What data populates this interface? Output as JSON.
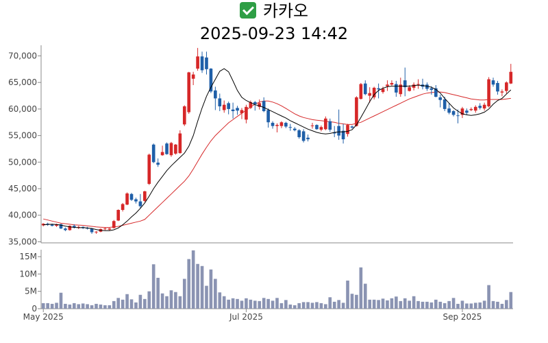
{
  "header": {
    "icon": "check-mark-icon",
    "name": "카카오",
    "datetime": "2025-09-23 14:42"
  },
  "colors": {
    "up": "#d62728",
    "down": "#1f5fa8",
    "ma_short": "#000000",
    "ma_long": "#d62728",
    "volume": "#8a93b2",
    "axis": "#888888"
  },
  "chart_data": {
    "type": "candlestick",
    "price_axis": {
      "ylim": [
        34800,
        72000
      ],
      "ticks": [
        "35,000",
        "40,000",
        "45,000",
        "50,000",
        "55,000",
        "60,000",
        "65,000",
        "70,000"
      ],
      "tick_values": [
        35000,
        40000,
        45000,
        50000,
        55000,
        60000,
        65000,
        70000
      ]
    },
    "volume_axis": {
      "ylim": [
        0,
        17000000
      ],
      "ticks": [
        "0",
        "5M",
        "10M",
        "15M"
      ],
      "tick_values": [
        0,
        5000000,
        10000000,
        15000000
      ]
    },
    "x_ticks": [
      {
        "label": "May 2025",
        "index": 0
      },
      {
        "label": "Jul 2025",
        "index": 46
      },
      {
        "label": "Sep 2025",
        "index": 95
      }
    ],
    "candles": [
      [
        38100,
        38500,
        37900,
        38400
      ],
      [
        38400,
        38600,
        38000,
        38200
      ],
      [
        38200,
        38400,
        37900,
        38000
      ],
      [
        38000,
        38400,
        37800,
        38300
      ],
      [
        38300,
        38400,
        37400,
        37500
      ],
      [
        37500,
        37700,
        37000,
        37200
      ],
      [
        37200,
        38100,
        37100,
        38000
      ],
      [
        38000,
        38300,
        37500,
        37700
      ],
      [
        37700,
        38000,
        37400,
        37800
      ],
      [
        37800,
        37900,
        37400,
        37600
      ],
      [
        37600,
        37800,
        37300,
        37500
      ],
      [
        37500,
        37600,
        36500,
        36800
      ],
      [
        36800,
        37000,
        36500,
        36900
      ],
      [
        36900,
        37500,
        36800,
        37400
      ],
      [
        37400,
        37700,
        37200,
        37500
      ],
      [
        37300,
        37600,
        37100,
        37500
      ],
      [
        37600,
        39100,
        37500,
        38900
      ],
      [
        39000,
        41100,
        38900,
        41000
      ],
      [
        41000,
        42300,
        40700,
        42100
      ],
      [
        42000,
        44300,
        41900,
        44100
      ],
      [
        44000,
        44200,
        42700,
        42900
      ],
      [
        43000,
        43300,
        42200,
        42600
      ],
      [
        42600,
        44000,
        41300,
        41700
      ],
      [
        42700,
        44600,
        42500,
        44500
      ],
      [
        45900,
        51600,
        45700,
        51400
      ],
      [
        53300,
        53500,
        49800,
        50000
      ],
      [
        49900,
        50700,
        49100,
        49500
      ],
      [
        51300,
        53100,
        51200,
        51900
      ],
      [
        53500,
        53700,
        51400,
        51500
      ],
      [
        51300,
        53800,
        51000,
        53600
      ],
      [
        51600,
        53400,
        51400,
        53300
      ],
      [
        51700,
        56000,
        51600,
        55400
      ],
      [
        57100,
        60700,
        56800,
        60500
      ],
      [
        59400,
        67000,
        59100,
        66900
      ],
      [
        65700,
        67000,
        64500,
        66500
      ],
      [
        67600,
        71500,
        67200,
        69900
      ],
      [
        69900,
        70800,
        66800,
        67300
      ],
      [
        69700,
        70800,
        66500,
        67500
      ],
      [
        67600,
        67700,
        63000,
        63300
      ],
      [
        63500,
        64200,
        59800,
        62000
      ],
      [
        62000,
        62900,
        59600,
        60500
      ],
      [
        59800,
        61600,
        59300,
        60800
      ],
      [
        61100,
        61400,
        59000,
        60000
      ],
      [
        59900,
        61200,
        58200,
        59600
      ],
      [
        60200,
        60600,
        58900,
        59700
      ],
      [
        59200,
        60200,
        58100,
        59800
      ],
      [
        58000,
        60800,
        57300,
        60400
      ],
      [
        60200,
        61600,
        60000,
        61300
      ],
      [
        61300,
        61500,
        59700,
        60900
      ],
      [
        60400,
        61800,
        59900,
        61100
      ],
      [
        61500,
        62200,
        59400,
        59600
      ],
      [
        59800,
        60100,
        56500,
        57500
      ],
      [
        57400,
        57700,
        56300,
        56800
      ],
      [
        56800,
        57300,
        55600,
        57000
      ],
      [
        56800,
        57700,
        56400,
        57500
      ],
      [
        57400,
        57600,
        56400,
        56700
      ],
      [
        56600,
        57200,
        55900,
        56500
      ],
      [
        56300,
        56600,
        55800,
        56000
      ],
      [
        56000,
        56200,
        54400,
        54700
      ],
      [
        55800,
        56200,
        53700,
        54000
      ],
      [
        54600,
        55200,
        53900,
        54300
      ],
      [
        56800,
        57400,
        56300,
        56900
      ],
      [
        57000,
        57100,
        56100,
        56200
      ],
      [
        56100,
        56900,
        55800,
        56600
      ],
      [
        56200,
        58600,
        56000,
        58200
      ],
      [
        57700,
        58200,
        55700,
        56100
      ],
      [
        55600,
        56800,
        54700,
        55400
      ],
      [
        56800,
        59900,
        54200,
        55000
      ],
      [
        55900,
        57200,
        53500,
        54300
      ],
      [
        55300,
        57200,
        54800,
        57000
      ],
      [
        56700,
        56900,
        56300,
        56500
      ],
      [
        56800,
        62400,
        56700,
        62200
      ],
      [
        61900,
        64900,
        61800,
        64700
      ],
      [
        64800,
        65400,
        62600,
        62800
      ],
      [
        62500,
        64100,
        61200,
        63000
      ],
      [
        62200,
        64200,
        61800,
        64000
      ],
      [
        63900,
        64800,
        62000,
        63700
      ],
      [
        63200,
        64200,
        62900,
        63800
      ],
      [
        64300,
        65400,
        63400,
        64600
      ],
      [
        64600,
        65400,
        64400,
        64900
      ],
      [
        64700,
        65300,
        62300,
        63100
      ],
      [
        62800,
        65900,
        62300,
        64600
      ],
      [
        65400,
        67800,
        62400,
        64100
      ],
      [
        63400,
        64500,
        63300,
        64100
      ],
      [
        64000,
        65000,
        63500,
        64600
      ],
      [
        64700,
        65600,
        63800,
        64700
      ],
      [
        64600,
        65700,
        63700,
        64200
      ],
      [
        64600,
        65000,
        63400,
        63800
      ],
      [
        63900,
        64300,
        62700,
        63600
      ],
      [
        63900,
        64500,
        62200,
        62300
      ],
      [
        62200,
        62700,
        60300,
        61700
      ],
      [
        61800,
        62300,
        59600,
        60000
      ],
      [
        60100,
        61100,
        59000,
        59300
      ],
      [
        59600,
        59800,
        58600,
        58900
      ],
      [
        58800,
        59900,
        57300,
        58700
      ],
      [
        58900,
        60400,
        58300,
        60100
      ],
      [
        59700,
        60100,
        58900,
        59300
      ],
      [
        59800,
        60300,
        59600,
        60000
      ],
      [
        59700,
        60700,
        59300,
        60400
      ],
      [
        60600,
        61100,
        59900,
        60200
      ],
      [
        60100,
        61200,
        59700,
        60800
      ],
      [
        60500,
        66000,
        60300,
        65600
      ],
      [
        65400,
        65900,
        64200,
        64600
      ],
      [
        64900,
        65300,
        62700,
        63300
      ],
      [
        63100,
        63700,
        62400,
        63300
      ],
      [
        63400,
        65200,
        62900,
        65000
      ],
      [
        64800,
        68500,
        64700,
        67000
      ]
    ],
    "volume_millions": [
      1.6,
      1.6,
      1.4,
      1.7,
      4.6,
      1.4,
      1.2,
      1.6,
      1.3,
      1.5,
      1.3,
      1.0,
      1.4,
      1.2,
      1.0,
      1.0,
      2.2,
      3.1,
      2.6,
      4.2,
      2.7,
      1.8,
      4.0,
      2.8,
      5.0,
      12.8,
      8.9,
      4.4,
      3.6,
      5.3,
      4.8,
      3.6,
      8.6,
      14.3,
      16.8,
      12.9,
      12.3,
      6.6,
      11.3,
      8.6,
      4.7,
      3.6,
      2.6,
      3.0,
      2.8,
      2.3,
      3.0,
      2.6,
      2.3,
      2.2,
      3.1,
      2.8,
      2.3,
      3.1,
      1.6,
      2.5,
      1.2,
      1.0,
      1.6,
      1.9,
      1.9,
      1.7,
      1.9,
      1.6,
      1.3,
      3.3,
      2.0,
      2.5,
      1.7,
      8.1,
      4.3,
      4.0,
      11.9,
      7.2,
      2.6,
      2.6,
      2.5,
      2.9,
      2.4,
      3.0,
      3.5,
      2.2,
      3.0,
      2.3,
      3.6,
      2.2,
      2.0,
      2.0,
      1.8,
      2.6,
      2.0,
      1.6,
      2.2,
      3.1,
      1.4,
      2.3,
      1.5,
      1.5,
      1.7,
      1.8,
      2.3,
      6.8,
      2.2,
      2.0,
      1.4,
      2.5,
      4.8
    ],
    "ma_short": [
      38200,
      38270,
      38300,
      38250,
      38150,
      37950,
      37800,
      37700,
      37650,
      37650,
      37600,
      37500,
      37300,
      37150,
      37100,
      37100,
      37250,
      37600,
      38200,
      38900,
      39700,
      40400,
      41300,
      42300,
      43600,
      45000,
      46200,
      47300,
      48400,
      49300,
      50100,
      50900,
      51700,
      53000,
      55000,
      57700,
      60200,
      62400,
      64100,
      65600,
      67100,
      67600,
      67000,
      65300,
      63500,
      62200,
      61600,
      61200,
      60800,
      60600,
      60300,
      59900,
      59500,
      59100,
      58700,
      58300,
      57800,
      57400,
      57000,
      56600,
      56200,
      55900,
      55600,
      55400,
      55300,
      55400,
      55600,
      55700,
      55700,
      55800,
      56100,
      57000,
      58400,
      59900,
      61400,
      62700,
      63500,
      63900,
      64200,
      64300,
      64300,
      64300,
      64300,
      64300,
      64400,
      64500,
      64400,
      64300,
      64100,
      63700,
      63000,
      62000,
      61100,
      60200,
      59600,
      59100,
      58900,
      58800,
      58900,
      59100,
      59400,
      60000,
      60900,
      61600,
      62000,
      62800,
      63600
    ],
    "ma_long": [
      39300,
      39100,
      38900,
      38700,
      38500,
      38400,
      38300,
      38200,
      38150,
      38100,
      38000,
      37900,
      37800,
      37750,
      37700,
      37700,
      37800,
      37900,
      38100,
      38300,
      38500,
      38700,
      38900,
      39200,
      40000,
      40800,
      41600,
      42400,
      43200,
      44000,
      44800,
      45600,
      46400,
      47400,
      48700,
      50100,
      51500,
      52800,
      54000,
      55000,
      55800,
      56600,
      57400,
      58000,
      58600,
      59200,
      59800,
      60400,
      60900,
      61300,
      61500,
      61500,
      61300,
      61000,
      60600,
      60100,
      59600,
      59100,
      58700,
      58400,
      58200,
      58000,
      57900,
      57800,
      57700,
      57600,
      57500,
      57300,
      57200,
      57100,
      57100,
      57300,
      57500,
      57900,
      58300,
      58700,
      59100,
      59500,
      59900,
      60300,
      60700,
      61100,
      61500,
      61900,
      62200,
      62500,
      62800,
      63000,
      63100,
      63200,
      63200,
      63100,
      62900,
      62700,
      62500,
      62300,
      62100,
      61900,
      61800,
      61700,
      61700,
      61800,
      61800,
      61800,
      61800,
      61900,
      62000
    ]
  }
}
